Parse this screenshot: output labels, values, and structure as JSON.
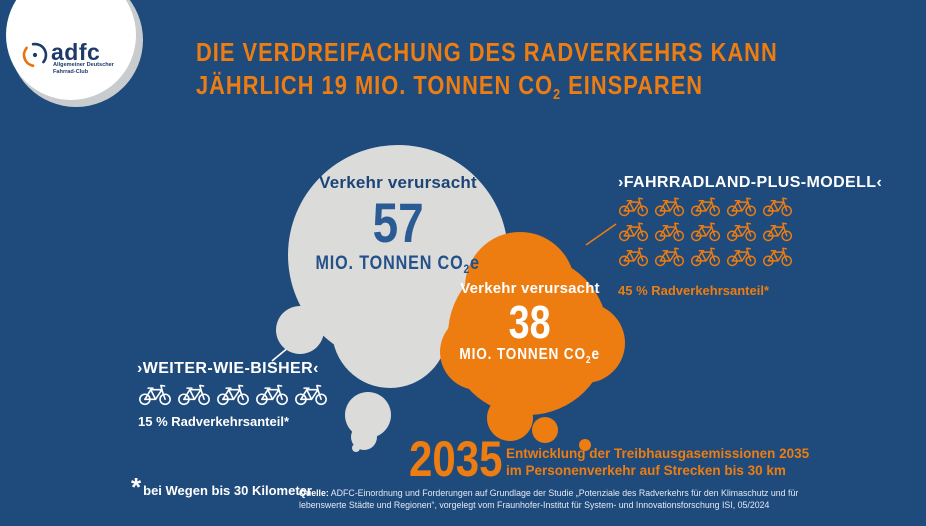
{
  "colors": {
    "background": "#1F4A7C",
    "accent_orange": "#ED7D11",
    "cloud_gray": "#DBDBDA",
    "label_blue": "#1D4476",
    "number_blue": "#2B5B94",
    "white": "#FFFFFF"
  },
  "logo": {
    "brand": "adfc",
    "subline1": "Allgemeiner Deutscher",
    "subline2": "Fahrrad-Club"
  },
  "title": {
    "line1": "DIE VERDREIFACHUNG DES RADVERKEHRS KANN",
    "line2_prefix": "JÄHRLICH 19 MIO. TONNEN CO",
    "line2_sub": "2",
    "line2_suffix": " EINSPAREN"
  },
  "scenarios": {
    "baseline": {
      "label": "›WEITER-WIE-BISHER‹",
      "share": "15 % Radverkehrsanteil*",
      "bike_rows": [
        5
      ],
      "cloud": {
        "caused": "Verkehr verursacht",
        "value": "57",
        "unit_prefix": "MIO. TONNEN CO",
        "unit_sub": "2",
        "unit_suffix": "e"
      }
    },
    "plus_model": {
      "label": "›FAHRRADLAND-PLUS-MODELL‹",
      "share": "45 % Radverkehrsanteil*",
      "bike_rows": [
        5,
        5,
        5
      ],
      "cloud": {
        "caused": "Verkehr verursacht",
        "value": "38",
        "unit_prefix": "MIO. TONNEN CO",
        "unit_sub": "2",
        "unit_suffix": "e"
      }
    }
  },
  "year_note": {
    "year": "2035",
    "desc_line1": "Entwicklung der Treibhausgasemissionen 2035",
    "desc_line2": "im Personenverkehr auf Strecken bis 30 km"
  },
  "footnote": {
    "star": "*",
    "text": "bei Wegen bis 30 Kilometer"
  },
  "source": {
    "label": "Quelle:",
    "line1": " ADFC-Einordnung und Forderungen auf Grundlage der Studie „Potenziale des Radverkehrs für den Klimaschutz und für",
    "line2": "lebenswerte Städte und Regionen“, vorgelegt vom Fraunhofer-Institut für System- und Innovationsforschung ISI, 05/2024"
  },
  "chart_data": {
    "type": "bubble",
    "title": "Die Verdreifachung des Radverkehrs kann jährlich 19 Mio. Tonnen CO2 einsparen",
    "year": "2035",
    "series": [
      {
        "name": "Weiter-wie-bisher",
        "radverkehrsanteil_pct": 15,
        "co2e_mio_tonnen": 57
      },
      {
        "name": "Fahrradland-Plus-Modell",
        "radverkehrsanteil_pct": 45,
        "co2e_mio_tonnen": 38
      }
    ],
    "savings_mio_tonnen_co2": 19
  }
}
